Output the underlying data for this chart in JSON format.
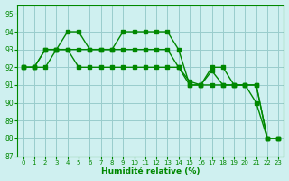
{
  "xlabel": "Humidité relative (%)",
  "background_color": "#cff0f0",
  "grid_color": "#99cccc",
  "line_color": "#008800",
  "xlim": [
    -0.5,
    23.5
  ],
  "ylim": [
    87,
    95.5
  ],
  "yticks": [
    87,
    88,
    89,
    90,
    91,
    92,
    93,
    94,
    95
  ],
  "xticks": [
    0,
    1,
    2,
    3,
    4,
    5,
    6,
    7,
    8,
    9,
    10,
    11,
    12,
    13,
    14,
    15,
    16,
    17,
    18,
    19,
    20,
    21,
    22,
    23
  ],
  "line1_x": [
    0,
    1,
    2,
    3,
    4,
    5,
    6,
    7,
    8,
    9,
    10,
    11,
    12,
    13,
    14,
    15,
    16,
    17,
    18,
    19,
    20,
    21,
    22,
    23
  ],
  "line1_y": [
    92,
    92,
    92,
    93,
    93,
    92,
    92,
    92,
    92,
    92,
    92,
    92,
    92,
    92,
    92,
    91,
    91,
    91,
    91,
    91,
    91,
    91,
    88,
    88
  ],
  "line2_x": [
    0,
    1,
    2,
    3,
    4,
    5,
    6,
    7,
    8,
    9,
    10,
    11,
    12,
    13,
    14,
    15,
    16,
    17,
    18,
    19,
    20,
    21,
    22,
    23
  ],
  "line2_y": [
    92,
    92,
    93,
    93,
    94,
    94,
    93,
    93,
    93,
    94,
    94,
    94,
    94,
    94,
    93,
    91,
    91,
    92,
    92,
    91,
    91,
    90,
    88,
    88
  ],
  "line3_x": [
    0,
    1,
    2,
    3,
    4,
    5,
    6,
    7,
    8,
    9,
    10,
    11,
    12,
    13,
    14,
    15,
    16,
    17,
    18,
    19,
    20,
    21,
    22,
    23
  ],
  "line3_y": [
    92,
    92,
    93,
    93,
    93,
    93,
    93,
    93,
    93,
    93,
    93,
    93,
    93,
    93,
    92,
    91.2,
    91,
    91.8,
    91,
    91,
    91,
    91,
    88,
    88
  ]
}
